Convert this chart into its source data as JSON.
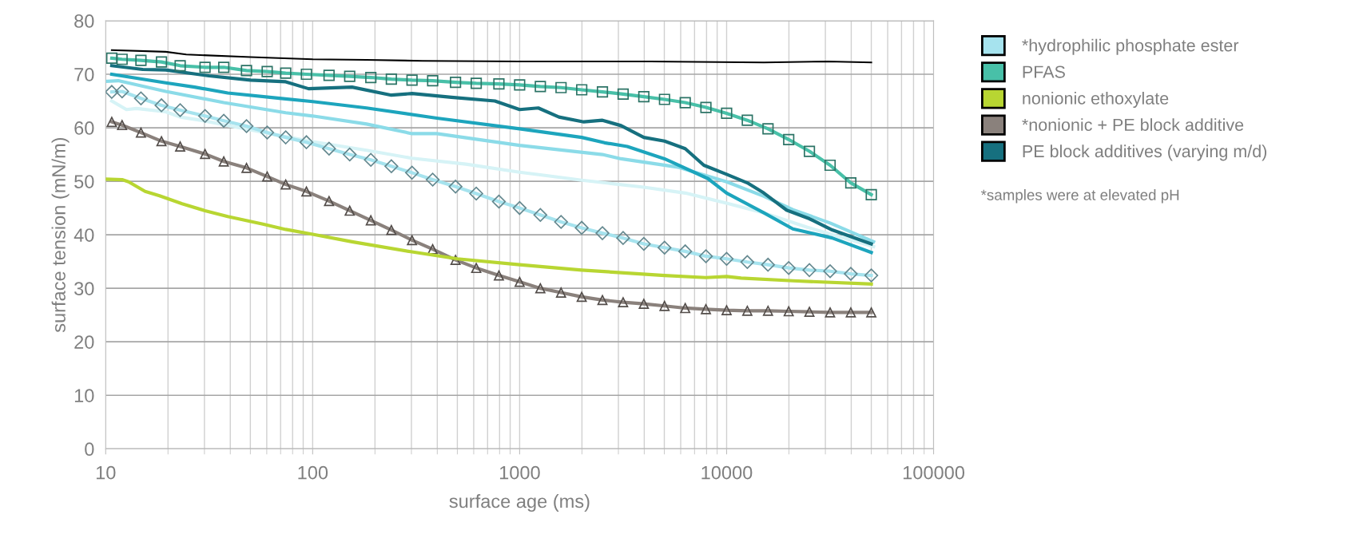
{
  "chart_data": {
    "type": "line",
    "xlabel": "surface age (ms)",
    "ylabel": "surface tension (mN/m)",
    "log": "x",
    "xlim": [
      10,
      100000
    ],
    "ylim": [
      0,
      80
    ],
    "xticks": [
      10,
      100,
      1000,
      10000,
      100000
    ],
    "yticks": [
      0,
      10,
      20,
      30,
      40,
      50,
      60,
      70,
      80
    ],
    "grid": true,
    "legend": "right",
    "line_style": "solid",
    "annotations": [
      "*samples were at elevated pH"
    ],
    "series": [
      {
        "name": "*hydrophilic phosphate ester",
        "color": "#a6e3ee",
        "marker": "diamond",
        "x": [
          10.7,
          12,
          14.8,
          18.6,
          22.9,
          30.2,
          37.2,
          47.9,
          60.3,
          74.1,
          93.3,
          120,
          151,
          191,
          240,
          302,
          380,
          490,
          617,
          794,
          1000,
          1259,
          1585,
          1995,
          2512,
          3162,
          3981,
          5012,
          6310,
          7943,
          10000,
          12589,
          15849,
          19953,
          25119,
          31623,
          39811,
          50000
        ],
        "values": [
          66.7,
          66.8,
          65.5,
          64.2,
          63.3,
          62.2,
          61.3,
          60.3,
          59.1,
          58.2,
          57.3,
          56.1,
          55.0,
          54.0,
          52.8,
          51.6,
          50.3,
          49.0,
          47.7,
          46.2,
          45.0,
          43.7,
          42.4,
          41.3,
          40.3,
          39.4,
          38.3,
          37.6,
          36.9,
          36.0,
          35.5,
          34.9,
          34.4,
          33.8,
          33.4,
          33.2,
          32.7,
          32.4
        ]
      },
      {
        "name": "PFAS",
        "color": "#48c0a8",
        "marker": "square",
        "x": [
          10.7,
          12,
          14.8,
          18.6,
          22.9,
          30.2,
          37.2,
          47.9,
          60.3,
          74.1,
          93.3,
          120,
          151,
          191,
          240,
          302,
          380,
          490,
          617,
          794,
          1000,
          1259,
          1585,
          1995,
          2512,
          3162,
          3981,
          5012,
          6310,
          7943,
          10000,
          12589,
          15849,
          19953,
          25119,
          31623,
          39811,
          50000
        ],
        "values": [
          73.0,
          72.8,
          72.6,
          72.3,
          71.6,
          71.3,
          71.3,
          70.7,
          70.5,
          70.2,
          70.0,
          69.8,
          69.6,
          69.4,
          69.1,
          68.9,
          68.8,
          68.5,
          68.3,
          68.2,
          68.0,
          67.7,
          67.5,
          67.1,
          66.7,
          66.3,
          65.8,
          65.3,
          64.7,
          63.8,
          62.7,
          61.4,
          59.8,
          57.8,
          55.6,
          53.0,
          49.7,
          47.5
        ]
      },
      {
        "name": "nonionic ethoxylate",
        "color": "#b8d632",
        "marker": "none",
        "x": [
          10,
          12,
          12.9,
          15.5,
          18.2,
          23.4,
          30.2,
          38.9,
          57.5,
          74.1,
          100,
          155,
          302,
          501,
          1000,
          1995,
          5012,
          7943,
          10000,
          11749,
          20893,
          50000
        ],
        "values": [
          50.4,
          50.3,
          49.9,
          48.1,
          47.3,
          45.8,
          44.5,
          43.4,
          42.0,
          41.0,
          40.1,
          38.7,
          36.8,
          35.5,
          34.4,
          33.4,
          32.4,
          32.0,
          32.2,
          31.9,
          31.4,
          30.8
        ]
      },
      {
        "name": "*nonionic + PE block additive",
        "color": "#8a817c",
        "marker": "triangle",
        "x": [
          10.7,
          12,
          14.8,
          18.6,
          22.9,
          30.2,
          37.2,
          47.9,
          60.3,
          74.1,
          93.3,
          120,
          151,
          191,
          240,
          302,
          380,
          490,
          617,
          794,
          1000,
          1259,
          1585,
          1995,
          2512,
          3162,
          3981,
          5012,
          6310,
          7943,
          10000,
          12589,
          15849,
          19953,
          25119,
          31623,
          39811,
          50000
        ],
        "values": [
          61.1,
          60.5,
          59.1,
          57.5,
          56.5,
          55.1,
          53.7,
          52.5,
          50.9,
          49.4,
          48.1,
          46.3,
          44.5,
          42.7,
          40.9,
          39.0,
          37.3,
          35.3,
          33.8,
          32.4,
          31.2,
          30.0,
          29.2,
          28.4,
          27.8,
          27.4,
          27.1,
          26.7,
          26.3,
          26.1,
          25.9,
          25.8,
          25.8,
          25.7,
          25.6,
          25.5,
          25.5,
          25.5
        ]
      },
      {
        "color": "#000000",
        "marker": "none",
        "x": [
          10.7,
          19.5,
          24.5,
          50.1,
          100,
          182,
          339,
          1000,
          4266,
          15136,
          30903,
          50000
        ],
        "values": [
          74.5,
          74.2,
          73.7,
          73.2,
          72.8,
          72.7,
          72.5,
          72.4,
          72.4,
          72.2,
          72.4,
          72.2
        ]
      },
      {
        "name": "PE block additives (varying m/d)",
        "color": "#16707f",
        "marker": "none",
        "x": [
          10.7,
          15.1,
          19.5,
          31.6,
          50.1,
          74.1,
          95.5,
          155,
          240,
          302,
          468,
          759,
          1000,
          1230,
          1549,
          2042,
          2512,
          3090,
          3981,
          5012,
          6310,
          7762,
          10000,
          12589,
          15136,
          19498,
          25119,
          32359,
          50000
        ],
        "values": [
          71.6,
          70.9,
          70.8,
          69.7,
          68.9,
          68.6,
          67.3,
          67.6,
          66.1,
          66.4,
          65.7,
          65.0,
          63.4,
          63.7,
          62.0,
          61.1,
          61.4,
          60.4,
          58.2,
          57.5,
          56.1,
          53.0,
          51.3,
          49.7,
          47.8,
          44.6,
          43.0,
          40.9,
          38.3
        ]
      },
      {
        "color": "#1da5bd",
        "marker": "none",
        "x": [
          10.7,
          19.5,
          26.9,
          38.9,
          69.2,
          100,
          182,
          398,
          1000,
          1995,
          2570,
          3311,
          5012,
          8128,
          10000,
          15136,
          20893,
          32359,
          50000
        ],
        "values": [
          70.0,
          68.4,
          67.6,
          66.5,
          65.5,
          64.9,
          63.7,
          61.8,
          59.8,
          58.2,
          57.2,
          56.5,
          54.2,
          50.5,
          47.8,
          44.1,
          41.1,
          39.4,
          36.7
        ]
      },
      {
        "color": "#8bdbe8",
        "marker": "none",
        "x": [
          10.2,
          11.5,
          19.5,
          37.2,
          74.1,
          100,
          182,
          302,
          398,
          1000,
          2512,
          3090,
          5888,
          10000,
          15136,
          20893,
          31623,
          51286
        ],
        "values": [
          68.7,
          68.8,
          66.8,
          64.7,
          62.8,
          62.2,
          60.7,
          58.9,
          58.9,
          56.7,
          55.0,
          54.2,
          52.6,
          49.9,
          47.2,
          44.7,
          42.2,
          38.7
        ]
      },
      {
        "color": "#d6f3f6",
        "marker": "none",
        "x": [
          10.7,
          12.6,
          14.1,
          19.5,
          22.9,
          28.8,
          50.1,
          100,
          182,
          302,
          550,
          1000,
          1259,
          1995,
          3981,
          6310,
          10000,
          15136,
          24547,
          51286
        ],
        "values": [
          65.0,
          63.4,
          63.6,
          63.0,
          62.0,
          61.4,
          59.6,
          57.4,
          55.8,
          54.3,
          53.2,
          51.7,
          51.2,
          50.2,
          48.9,
          47.8,
          45.9,
          44.1,
          41.4,
          37.8
        ]
      }
    ]
  }
}
